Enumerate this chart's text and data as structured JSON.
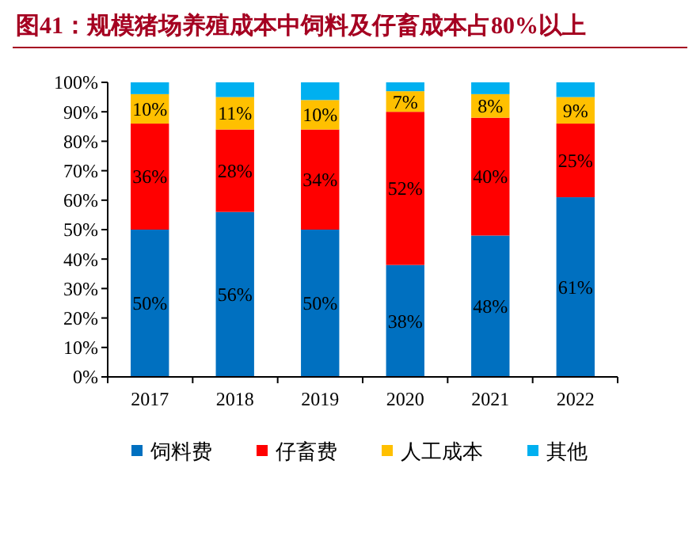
{
  "chart_data": {
    "type": "bar",
    "title": "图41：规模猪场养殖成本中饲料及仔畜成本占80%以上",
    "stacked": true,
    "legend": "bottom",
    "categories": [
      "2017",
      "2018",
      "2019",
      "2020",
      "2021",
      "2022"
    ],
    "ylim": [
      0,
      100
    ],
    "yticks": [
      {
        "value": 0,
        "label": "0%"
      },
      {
        "value": 10,
        "label": "10%"
      },
      {
        "value": 20,
        "label": "20%"
      },
      {
        "value": 30,
        "label": "30%"
      },
      {
        "value": 40,
        "label": "40%"
      },
      {
        "value": 50,
        "label": "50%"
      },
      {
        "value": 60,
        "label": "60%"
      },
      {
        "value": 70,
        "label": "70%"
      },
      {
        "value": 80,
        "label": "80%"
      },
      {
        "value": 90,
        "label": "90%"
      },
      {
        "value": 100,
        "label": "100%"
      }
    ],
    "series": [
      {
        "name": "饲料费",
        "color": "#0070c0",
        "values": [
          50,
          56,
          50,
          38,
          48,
          61
        ],
        "value_labels": [
          "50%",
          "56%",
          "50%",
          "38%",
          "48%",
          "61%"
        ]
      },
      {
        "name": "仔畜费",
        "color": "#ff0000",
        "values": [
          36,
          28,
          34,
          52,
          40,
          25
        ],
        "value_labels": [
          "36%",
          "28%",
          "34%",
          "52%",
          "40%",
          "25%"
        ]
      },
      {
        "name": "人工成本",
        "color": "#ffc000",
        "values": [
          10,
          11,
          10,
          7,
          8,
          9
        ],
        "value_labels": [
          "10%",
          "11%",
          "10%",
          "7%",
          "8%",
          "9%"
        ]
      },
      {
        "name": "其他",
        "color": "#00b0f0",
        "values": [
          4,
          5,
          6,
          3,
          4,
          5
        ]
      }
    ]
  }
}
